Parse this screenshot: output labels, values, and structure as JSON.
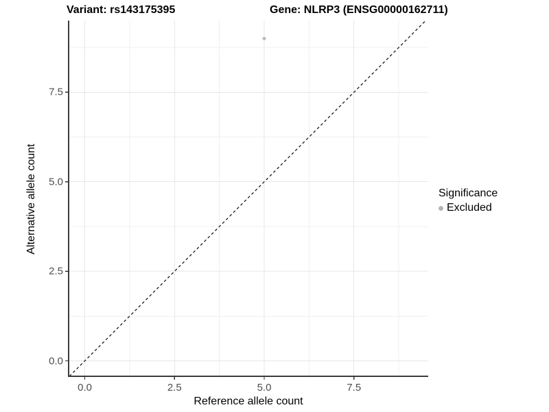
{
  "title": {
    "variant": "Variant: rs143175395",
    "gene": "Gene: NLRP3 (ENSG00000162711)"
  },
  "axes": {
    "x_label": "Reference allele count",
    "y_label": "Alternative allele count"
  },
  "legend": {
    "title": "Significance",
    "items": [
      {
        "label": "Excluded",
        "color": "#b5b5b5"
      }
    ]
  },
  "colors": {
    "grid_major": "#e7e7e7",
    "grid_minor": "#efefef",
    "axis_line": "#3c3c3c",
    "tick_mark": "#333333",
    "tick_text": "#4d4d4d",
    "ref_line": "#1a1a1a",
    "point": "#bebebe",
    "background": "#ffffff"
  },
  "chart_data": {
    "type": "scatter",
    "title": "Variant: rs143175395   Gene: NLRP3 (ENSG00000162711)",
    "xlabel": "Reference allele count",
    "ylabel": "Alternative allele count",
    "xlim": [
      -0.45,
      9.57
    ],
    "ylim": [
      -0.43,
      9.5
    ],
    "x_ticks": [
      0.0,
      2.5,
      5.0,
      7.5
    ],
    "y_ticks": [
      0.0,
      2.5,
      5.0,
      7.5
    ],
    "x_minor": [
      1.25,
      3.75,
      6.25,
      8.75
    ],
    "y_minor": [
      1.25,
      3.75,
      6.25,
      8.75
    ],
    "tick_decimals": 1,
    "grid": true,
    "legend_position": "right",
    "series": [
      {
        "name": "Excluded",
        "points": [
          {
            "x": 5,
            "y": 9
          }
        ]
      }
    ],
    "reference_line": {
      "kind": "identity",
      "slope": 1,
      "intercept": 0,
      "style": "dashed"
    }
  }
}
